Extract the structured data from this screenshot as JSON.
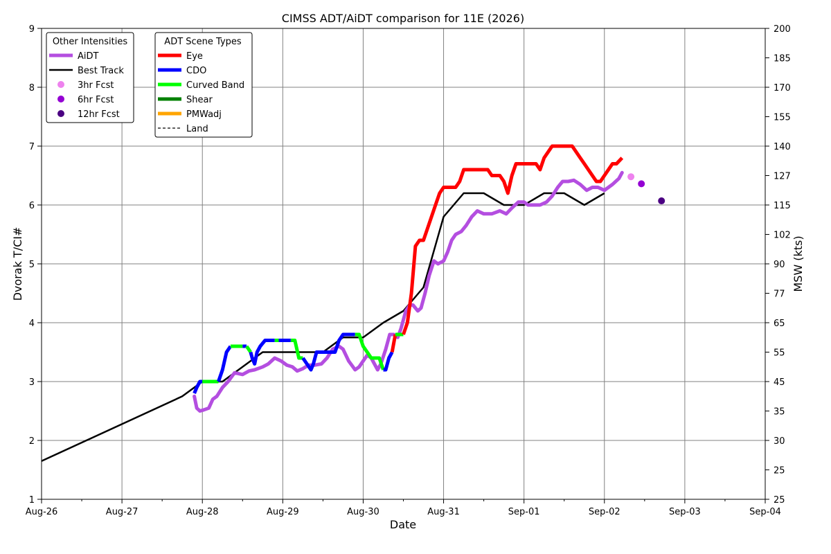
{
  "chart_data": {
    "type": "line",
    "title": "CIMSS ADT/AiDT comparison for 11E (2026)",
    "xlabel": "Date",
    "ylabel": "Dvorak T/CI#",
    "y2label": "MSW (kts)",
    "xlim": [
      0,
      9
    ],
    "ylim": [
      1,
      9
    ],
    "x_ticks": [
      "Aug-26",
      "Aug-27",
      "Aug-28",
      "Aug-29",
      "Aug-30",
      "Aug-31",
      "Sep-01",
      "Sep-02",
      "Sep-03",
      "Sep-04"
    ],
    "y_ticks": [
      1,
      2,
      3,
      4,
      5,
      6,
      7,
      8,
      9
    ],
    "y2_ticks": [
      {
        "t": 1,
        "label": "25"
      },
      {
        "t": 1.5,
        "label": "25"
      },
      {
        "t": 2,
        "label": "30"
      },
      {
        "t": 2.5,
        "label": "35"
      },
      {
        "t": 3,
        "label": "45"
      },
      {
        "t": 3.5,
        "label": "55"
      },
      {
        "t": 4,
        "label": "65"
      },
      {
        "t": 4.5,
        "label": "77"
      },
      {
        "t": 5,
        "label": "90"
      },
      {
        "t": 5.5,
        "label": "102"
      },
      {
        "t": 6,
        "label": "115"
      },
      {
        "t": 6.5,
        "label": "127"
      },
      {
        "t": 7,
        "label": "140"
      },
      {
        "t": 7.5,
        "label": "155"
      },
      {
        "t": 8,
        "label": "170"
      },
      {
        "t": 8.5,
        "label": "185"
      },
      {
        "t": 9,
        "label": "200"
      }
    ],
    "grid": true,
    "legends": {
      "other": {
        "title": "Other Intensities",
        "items": [
          {
            "label": "AiDT",
            "kind": "line",
            "color": "#b44ee0",
            "width": 5
          },
          {
            "label": "Best Track",
            "kind": "line",
            "color": "#000000",
            "width": 2.5
          },
          {
            "label": "3hr Fcst",
            "kind": "dot",
            "color": "#ee82ee"
          },
          {
            "label": "6hr Fcst",
            "kind": "dot",
            "color": "#9400d3"
          },
          {
            "label": "12hr Fcst",
            "kind": "dot",
            "color": "#4b0082"
          }
        ]
      },
      "scene": {
        "title": "ADT Scene Types",
        "items": [
          {
            "label": "Eye",
            "kind": "line",
            "color": "#ff0000",
            "width": 5
          },
          {
            "label": "CDO",
            "kind": "line",
            "color": "#0000ff",
            "width": 5
          },
          {
            "label": "Curved Band",
            "kind": "line",
            "color": "#00ff00",
            "width": 5
          },
          {
            "label": "Shear",
            "kind": "line",
            "color": "#008000",
            "width": 5
          },
          {
            "label": "PMWadj",
            "kind": "line",
            "color": "#ffa500",
            "width": 5
          },
          {
            "label": "Land",
            "kind": "dashed",
            "color": "#000000",
            "width": 1.2
          }
        ]
      }
    },
    "series": [
      {
        "name": "Best Track",
        "color": "#000000",
        "x": [
          0.0,
          1.75,
          2.0,
          2.25,
          2.5,
          2.75,
          3.0,
          3.25,
          3.5,
          3.75,
          4.0,
          4.25,
          4.5,
          4.75,
          5.0,
          5.25,
          5.5,
          5.75,
          6.0,
          6.25,
          6.5,
          6.75,
          7.0
        ],
        "y": [
          1.65,
          2.75,
          3.0,
          3.0,
          3.25,
          3.5,
          3.5,
          3.5,
          3.5,
          3.75,
          3.75,
          4.0,
          4.2,
          4.6,
          5.8,
          6.2,
          6.2,
          6.0,
          6.0,
          6.2,
          6.2,
          6.0,
          6.2
        ]
      },
      {
        "name": "AiDT",
        "color": "#b44ee0",
        "x": [
          1.9,
          1.93,
          1.97,
          2.02,
          2.08,
          2.13,
          2.18,
          2.25,
          2.32,
          2.4,
          2.5,
          2.58,
          2.65,
          2.75,
          2.82,
          2.9,
          2.98,
          3.05,
          3.12,
          3.18,
          3.25,
          3.32,
          3.4,
          3.48,
          3.55,
          3.62,
          3.7,
          3.75,
          3.82,
          3.9,
          3.95,
          4.0,
          4.05,
          4.1,
          4.18,
          4.22,
          4.28,
          4.33,
          4.38,
          4.43,
          4.47,
          4.53,
          4.58,
          4.62,
          4.68,
          4.72,
          4.77,
          4.82,
          4.88,
          4.93,
          5.0,
          5.05,
          5.1,
          5.15,
          5.22,
          5.28,
          5.35,
          5.42,
          5.5,
          5.6,
          5.7,
          5.78,
          5.85,
          5.93,
          6.0,
          6.05,
          6.1,
          6.15,
          6.2,
          6.28,
          6.35,
          6.42,
          6.48,
          6.55,
          6.62,
          6.7,
          6.78,
          6.85,
          6.92,
          7.0,
          7.1,
          7.18,
          7.22
        ],
        "y": [
          2.75,
          2.55,
          2.5,
          2.52,
          2.55,
          2.7,
          2.75,
          2.9,
          3.0,
          3.15,
          3.12,
          3.18,
          3.2,
          3.25,
          3.3,
          3.4,
          3.35,
          3.28,
          3.25,
          3.18,
          3.22,
          3.28,
          3.28,
          3.3,
          3.4,
          3.55,
          3.6,
          3.55,
          3.35,
          3.2,
          3.25,
          3.35,
          3.45,
          3.4,
          3.2,
          3.3,
          3.55,
          3.8,
          3.8,
          3.75,
          3.9,
          4.2,
          4.3,
          4.3,
          4.2,
          4.25,
          4.5,
          4.8,
          5.05,
          5.0,
          5.05,
          5.2,
          5.4,
          5.5,
          5.55,
          5.65,
          5.8,
          5.9,
          5.85,
          5.85,
          5.9,
          5.85,
          5.95,
          6.05,
          6.05,
          6.0,
          6.0,
          6.0,
          6.0,
          6.05,
          6.15,
          6.3,
          6.4,
          6.4,
          6.42,
          6.35,
          6.25,
          6.3,
          6.3,
          6.25,
          6.35,
          6.45,
          6.55
        ]
      }
    ],
    "adt": {
      "x": [
        1.9,
        1.93,
        1.97,
        2.0,
        2.05,
        2.1,
        2.15,
        2.2,
        2.25,
        2.3,
        2.35,
        2.4,
        2.45,
        2.5,
        2.55,
        2.6,
        2.62,
        2.65,
        2.68,
        2.72,
        2.78,
        2.85,
        2.9,
        2.95,
        3.0,
        3.05,
        3.1,
        3.15,
        3.2,
        3.25,
        3.3,
        3.35,
        3.38,
        3.42,
        3.47,
        3.5,
        3.55,
        3.6,
        3.65,
        3.7,
        3.75,
        3.8,
        3.85,
        3.9,
        3.95,
        4.0,
        4.05,
        4.1,
        4.15,
        4.2,
        4.25,
        4.28,
        4.32,
        4.36,
        4.4,
        4.45,
        4.5,
        4.55,
        4.6,
        4.65,
        4.7,
        4.75,
        4.8,
        4.85,
        4.9,
        4.95,
        5.0,
        5.05,
        5.1,
        5.15,
        5.2,
        5.25,
        5.3,
        5.35,
        5.4,
        5.45,
        5.5,
        5.55,
        5.6,
        5.65,
        5.7,
        5.75,
        5.8,
        5.85,
        5.9,
        5.95,
        6.0,
        6.05,
        6.1,
        6.15,
        6.2,
        6.25,
        6.3,
        6.35,
        6.4,
        6.45,
        6.5,
        6.55,
        6.6,
        6.65,
        6.7,
        6.75,
        6.8,
        6.85,
        6.9,
        6.95,
        7.0,
        7.05,
        7.1,
        7.15,
        7.22
      ],
      "y": [
        2.8,
        2.9,
        3.0,
        3.0,
        3.0,
        3.0,
        3.0,
        3.0,
        3.2,
        3.5,
        3.6,
        3.6,
        3.6,
        3.6,
        3.6,
        3.5,
        3.4,
        3.3,
        3.5,
        3.6,
        3.7,
        3.7,
        3.7,
        3.7,
        3.7,
        3.7,
        3.7,
        3.7,
        3.4,
        3.4,
        3.3,
        3.2,
        3.3,
        3.5,
        3.5,
        3.5,
        3.5,
        3.5,
        3.5,
        3.7,
        3.8,
        3.8,
        3.8,
        3.8,
        3.8,
        3.6,
        3.5,
        3.4,
        3.4,
        3.4,
        3.2,
        3.2,
        3.4,
        3.5,
        3.8,
        3.8,
        3.8,
        4.0,
        4.5,
        5.3,
        5.4,
        5.4,
        5.6,
        5.8,
        6.0,
        6.2,
        6.3,
        6.3,
        6.3,
        6.3,
        6.4,
        6.6,
        6.6,
        6.6,
        6.6,
        6.6,
        6.6,
        6.6,
        6.5,
        6.5,
        6.5,
        6.4,
        6.2,
        6.5,
        6.7,
        6.7,
        6.7,
        6.7,
        6.7,
        6.7,
        6.6,
        6.8,
        6.9,
        7.0,
        7.0,
        7.0,
        7.0,
        7.0,
        7.0,
        6.9,
        6.8,
        6.7,
        6.6,
        6.5,
        6.4,
        6.4,
        6.5,
        6.6,
        6.7,
        6.7,
        6.8
      ],
      "segments": [
        {
          "scene": "CDO",
          "from": 0,
          "to": 3
        },
        {
          "scene": "Curved Band",
          "from": 3,
          "to": 7
        },
        {
          "scene": "CDO",
          "from": 7,
          "to": 10
        },
        {
          "scene": "Curved Band",
          "from": 10,
          "to": 13
        },
        {
          "scene": "CDO",
          "from": 13,
          "to": 14
        },
        {
          "scene": "Curved Band",
          "from": 14,
          "to": 15
        },
        {
          "scene": "CDO",
          "from": 15,
          "to": 22
        },
        {
          "scene": "Curved Band",
          "from": 22,
          "to": 23
        },
        {
          "scene": "CDO",
          "from": 23,
          "to": 26
        },
        {
          "scene": "Curved Band",
          "from": 26,
          "to": 29
        },
        {
          "scene": "CDO",
          "from": 29,
          "to": 43
        },
        {
          "scene": "Curved Band",
          "from": 43,
          "to": 50
        },
        {
          "scene": "CDO",
          "from": 50,
          "to": 53
        },
        {
          "scene": "Eye",
          "from": 53,
          "to": 54
        },
        {
          "scene": "Curved Band",
          "from": 54,
          "to": 56
        },
        {
          "scene": "Eye",
          "from": 56,
          "to": 110
        }
      ]
    },
    "forecasts": [
      {
        "label": "3hr Fcst",
        "x": 7.33,
        "y": 6.48,
        "color": "#ee82ee"
      },
      {
        "label": "6hr Fcst",
        "x": 7.46,
        "y": 6.36,
        "color": "#9400d3"
      },
      {
        "label": "12hr Fcst",
        "x": 7.71,
        "y": 6.07,
        "color": "#4b0082"
      }
    ],
    "scene_colors": {
      "Eye": "#ff0000",
      "CDO": "#0000ff",
      "Curved Band": "#00ff00",
      "Shear": "#008000",
      "PMWadj": "#ffa500"
    }
  }
}
